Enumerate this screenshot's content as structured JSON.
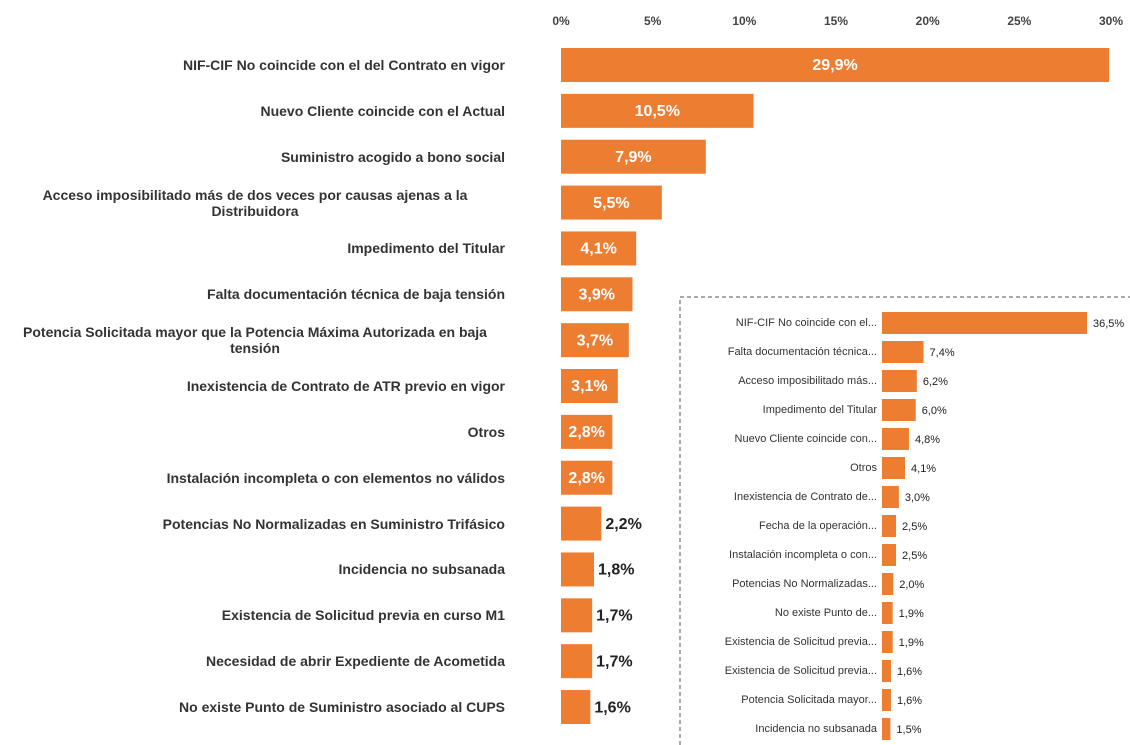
{
  "chart_data": [
    {
      "type": "hbar",
      "color": "#ED7D31",
      "categories": [
        "NIF-CIF No coincide con el del Contrato en vigor",
        "Nuevo Cliente coincide con el Actual",
        "Suministro acogido a bono social",
        "Acceso imposibilitado más de dos veces por causas ajenas a la Distribuidora",
        "Impedimento del Titular",
        "Falta documentación técnica de baja tensión",
        "Potencia Solicitada mayor que la Potencia Máxima Autorizada en baja tensión",
        "Inexistencia de Contrato de ATR previo en vigor",
        "Otros",
        "Instalación incompleta o con elementos no válidos",
        "Potencias No Normalizadas en Suministro Trifásico",
        "Incidencia no subsanada",
        "Existencia de Solicitud previa en curso M1",
        "Necesidad de abrir Expediente de Acometida",
        "No existe Punto de Suministro asociado al CUPS"
      ],
      "values": [
        29.9,
        10.5,
        7.9,
        5.5,
        4.1,
        3.9,
        3.7,
        3.1,
        2.8,
        2.8,
        2.2,
        1.8,
        1.7,
        1.7,
        1.6
      ],
      "value_labels": [
        "29,9%",
        "10,5%",
        "7,9%",
        "5,5%",
        "4,1%",
        "3,9%",
        "3,7%",
        "3,1%",
        "2,8%",
        "2,8%",
        "2,2%",
        "1,8%",
        "1,7%",
        "1,7%",
        "1,6%"
      ],
      "xlim": [
        0,
        30
      ],
      "xticks": [
        {
          "value": 0,
          "label": "0%"
        },
        {
          "value": 5,
          "label": "5%"
        },
        {
          "value": 10,
          "label": "10%"
        },
        {
          "value": 15,
          "label": "15%"
        },
        {
          "value": 20,
          "label": "20%"
        },
        {
          "value": 25,
          "label": "25%"
        },
        {
          "value": 30,
          "label": "30%"
        }
      ]
    },
    {
      "type": "hbar",
      "color": "#ED7D31",
      "categories": [
        "NIF-CIF No coincide con el...",
        "Falta documentación técnica...",
        "Acceso imposibilitado más...",
        "Impedimento del Titular",
        "Nuevo Cliente coincide con...",
        "Otros",
        "Inexistencia de Contrato de...",
        "Fecha de la operación...",
        "Instalación incompleta o con...",
        "Potencias No Normalizadas...",
        "No existe Punto de...",
        "Existencia de Solicitud previa...",
        "Existencia de Solicitud previa...",
        "Potencia Solicitada mayor...",
        "Incidencia no subsanada"
      ],
      "values": [
        36.5,
        7.4,
        6.2,
        6.0,
        4.8,
        4.1,
        3.0,
        2.5,
        2.5,
        2.0,
        1.9,
        1.9,
        1.6,
        1.6,
        1.5
      ],
      "value_labels": [
        "36,5%",
        "7,4%",
        "6,2%",
        "6,0%",
        "4,8%",
        "4,1%",
        "3,0%",
        "2,5%",
        "2,5%",
        "2,0%",
        "1,9%",
        "1,9%",
        "1,6%",
        "1,6%",
        "1,5%"
      ]
    }
  ]
}
